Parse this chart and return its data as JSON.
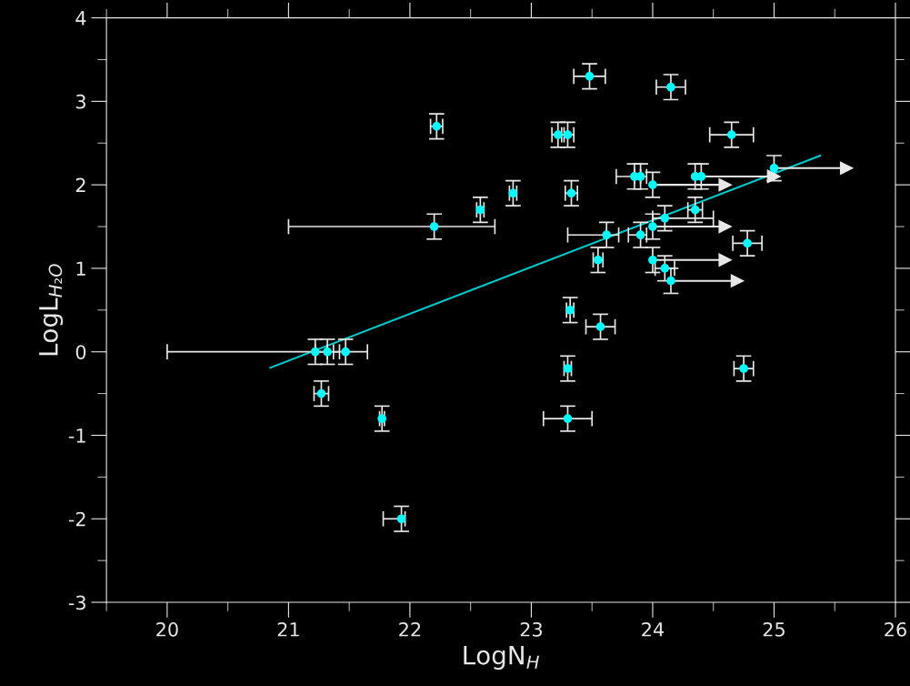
{
  "chart_data": {
    "type": "scatter",
    "xlabel": "LogN$_{H}$",
    "ylabel": "LogL$_{H₂O}$",
    "xlim": [
      19.5,
      26
    ],
    "ylim": [
      -3,
      4
    ],
    "xticks": [
      20,
      21,
      22,
      23,
      24,
      25,
      26
    ],
    "yticks": [
      -3,
      -2,
      -1,
      0,
      1,
      2,
      3,
      4
    ],
    "grid": false,
    "marker": "circle",
    "series": [
      {
        "color": "#00ffff",
        "x": [
          21.22,
          21.32,
          21.47,
          21.27,
          21.77,
          21.93,
          22.2,
          22.22,
          22.58,
          22.85,
          23.22,
          23.3,
          23.48,
          23.33,
          23.32,
          23.3,
          23.3,
          23.55,
          23.57,
          23.62,
          23.85,
          23.9,
          23.9,
          24.1,
          24.1,
          24.15,
          24.35,
          24.65,
          24.78,
          24.75
        ],
        "values": [
          0,
          0,
          0,
          -0.5,
          -0.8,
          -2.0,
          1.5,
          2.7,
          1.7,
          1.9,
          2.6,
          2.6,
          3.3,
          1.9,
          0.5,
          -0.2,
          -0.8,
          1.1,
          0.3,
          1.4,
          2.1,
          2.1,
          1.4,
          1.6,
          1.0,
          3.17,
          1.7,
          2.6,
          1.3,
          -0.2
        ],
        "errors": [
          0.15,
          0.15,
          0.15,
          0.15,
          0.15,
          0.15,
          0.15,
          0.15,
          0.15,
          0.15,
          0.15,
          0.15,
          0.15,
          0.15,
          0.15,
          0.15,
          0.15,
          0.15,
          0.15,
          0.15,
          0.15,
          0.15,
          0.15,
          0.15,
          0.15,
          0.15,
          0.15,
          0.15,
          0.15,
          0.15
        ],
        "xerrors": [
          [
            20.0,
            21.32
          ],
          0.1,
          [
            21.37,
            21.65
          ],
          0.06,
          0.02,
          [
            21.78,
            21.96
          ],
          [
            21.0,
            22.7
          ],
          0.05,
          0.03,
          0.03,
          0.05,
          0.05,
          0.13,
          0.05,
          0.03,
          0.03,
          0.2,
          0.04,
          0.12,
          [
            23.3,
            23.72
          ],
          [
            23.7,
            23.9
          ],
          0.05,
          [
            23.8,
            23.95
          ],
          [
            24.0,
            24.5
          ],
          0.08,
          0.12,
          0.06,
          0.18,
          0.12,
          0.08
        ]
      },
      {
        "color": "#00ffff",
        "x": [
          24.0,
          24.0,
          24.0,
          24.15,
          24.35,
          24.4,
          25.0
        ],
        "values": [
          2.0,
          1.5,
          1.1,
          0.85,
          2.1,
          2.1,
          2.2
        ],
        "errors": [
          0.15,
          0.15,
          0.15,
          0.15,
          0.15,
          0.15,
          0.15
        ],
        "xerrors": [
          [
            24.0,
            24.6
          ],
          [
            24.0,
            24.6
          ],
          [
            24.0,
            24.6
          ],
          [
            24.15,
            24.7
          ],
          [
            24.35,
            25.0
          ],
          [
            24.4,
            25.0
          ],
          [
            25.0,
            25.6
          ]
        ]
      },
      {
        "type": "line",
        "marker": "none",
        "color": "#00c8c8",
        "x": [
          20.85,
          25.38
        ],
        "values": [
          -0.19,
          2.35
        ]
      }
    ]
  }
}
